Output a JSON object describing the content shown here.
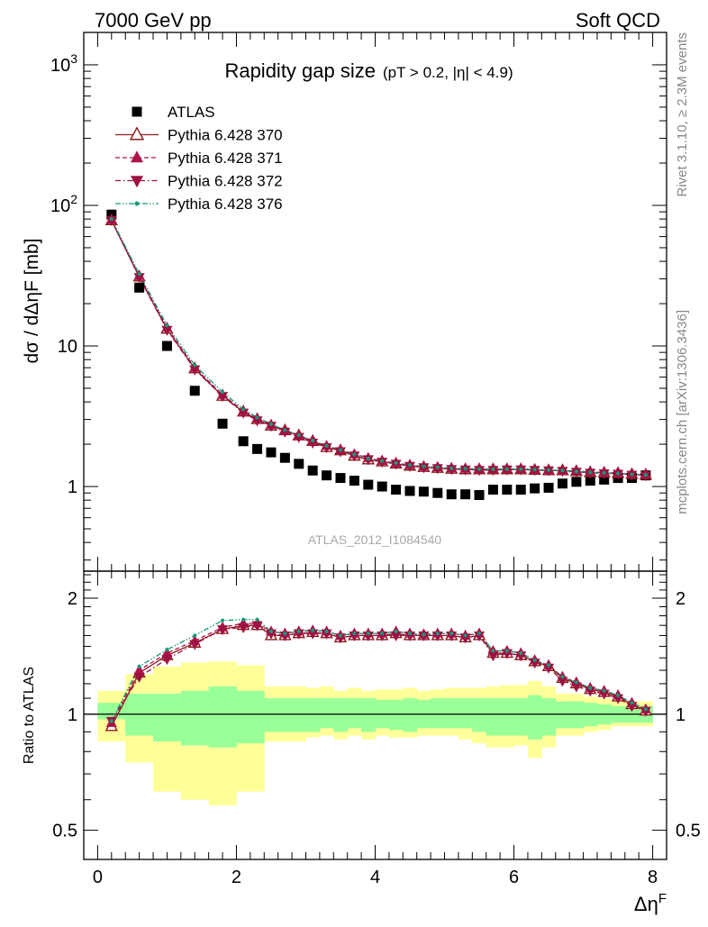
{
  "header": {
    "energy_label": "7000 GeV pp",
    "process_label": "Soft QCD"
  },
  "side": {
    "rivet_label": "Rivet 3.1.10, ≥ 2.3M events",
    "mcplots_label": "mcplots.cern.ch [arXiv:1306.3436]"
  },
  "colors": {
    "data": "#000000",
    "p370": "#8b1a1a",
    "p371": "#b0124a",
    "p372": "#9e1242",
    "p376": "#109a78",
    "band_stat": "#99ff99",
    "band_total": "#ffff99"
  },
  "chart_data": [
    {
      "type": "scatter",
      "title": "Rapidity gap size",
      "subtitle": "(pT > 0.2, |η| < 4.9)",
      "ylabel": "dσ / dΔηF [mb]",
      "xlabel": "ΔηF",
      "yscale": "log",
      "ylim": [
        0.25,
        1700
      ],
      "xlim": [
        -0.2,
        8.2
      ],
      "grid": false,
      "legend_position": "top-left",
      "annotation": "ATLAS_2012_I1084540",
      "x_ticks": [
        "0",
        "2",
        "4",
        "6",
        "8"
      ],
      "y_ticks": [
        "1",
        "10",
        "10²",
        "10³"
      ],
      "x": [
        0.2,
        0.6,
        1.0,
        1.4,
        1.8,
        2.1,
        2.3,
        2.5,
        2.7,
        2.9,
        3.1,
        3.3,
        3.5,
        3.7,
        3.9,
        4.1,
        4.3,
        4.5,
        4.7,
        4.9,
        5.1,
        5.3,
        5.5,
        5.7,
        5.9,
        6.1,
        6.3,
        6.5,
        6.7,
        6.9,
        7.1,
        7.3,
        7.5,
        7.7,
        7.9
      ],
      "series": [
        {
          "name": "ATLAS",
          "marker": "square",
          "line": "none",
          "values": [
            86,
            26,
            10,
            4.8,
            2.8,
            2.1,
            1.85,
            1.75,
            1.6,
            1.45,
            1.3,
            1.2,
            1.15,
            1.1,
            1.03,
            1.0,
            0.95,
            0.93,
            0.92,
            0.9,
            0.88,
            0.88,
            0.87,
            0.95,
            0.95,
            0.95,
            0.97,
            0.98,
            1.05,
            1.08,
            1.1,
            1.12,
            1.15,
            1.15,
            1.2
          ]
        },
        {
          "name": "Pythia 6.428 370",
          "marker": "triangle-open",
          "line": "solid",
          "values": [
            78,
            31,
            13.2,
            6.9,
            4.4,
            3.4,
            3.0,
            2.7,
            2.5,
            2.3,
            2.1,
            1.9,
            1.8,
            1.65,
            1.55,
            1.5,
            1.45,
            1.4,
            1.37,
            1.35,
            1.33,
            1.32,
            1.32,
            1.32,
            1.32,
            1.32,
            1.31,
            1.3,
            1.3,
            1.28,
            1.26,
            1.25,
            1.24,
            1.22,
            1.21
          ]
        },
        {
          "name": "Pythia 6.428 371",
          "marker": "triangle-up",
          "line": "dashed",
          "values": [
            79,
            31.5,
            13.5,
            7.0,
            4.5,
            3.45,
            3.05,
            2.75,
            2.5,
            2.3,
            2.1,
            1.95,
            1.82,
            1.7,
            1.6,
            1.52,
            1.47,
            1.42,
            1.39,
            1.37,
            1.35,
            1.34,
            1.33,
            1.33,
            1.33,
            1.33,
            1.32,
            1.31,
            1.3,
            1.29,
            1.27,
            1.26,
            1.25,
            1.23,
            1.22
          ]
        },
        {
          "name": "Pythia 6.428 372",
          "marker": "triangle-down",
          "line": "dashdot",
          "values": [
            78.5,
            30.8,
            13.0,
            6.8,
            4.4,
            3.35,
            2.95,
            2.7,
            2.45,
            2.25,
            2.05,
            1.9,
            1.78,
            1.66,
            1.56,
            1.5,
            1.45,
            1.4,
            1.37,
            1.35,
            1.33,
            1.32,
            1.31,
            1.31,
            1.32,
            1.32,
            1.31,
            1.3,
            1.29,
            1.27,
            1.25,
            1.24,
            1.23,
            1.21,
            1.2
          ]
        },
        {
          "name": "Pythia 6.428 376",
          "marker": "dot",
          "line": "dashdotdot",
          "values": [
            80,
            32.5,
            14.0,
            7.3,
            4.7,
            3.55,
            3.1,
            2.78,
            2.52,
            2.32,
            2.12,
            1.95,
            1.82,
            1.69,
            1.58,
            1.52,
            1.47,
            1.42,
            1.39,
            1.37,
            1.35,
            1.34,
            1.33,
            1.33,
            1.33,
            1.33,
            1.32,
            1.31,
            1.3,
            1.28,
            1.26,
            1.25,
            1.24,
            1.22,
            1.21
          ]
        }
      ]
    },
    {
      "type": "scatter",
      "ylabel": "Ratio to ATLAS",
      "xlabel": "ΔηF",
      "yscale": "log",
      "ylim": [
        0.42,
        2.35
      ],
      "xlim": [
        -0.2,
        8.2
      ],
      "grid": false,
      "reference_line": 1,
      "x_ticks": [
        "0",
        "2",
        "4",
        "6",
        "8"
      ],
      "y_ticks": [
        "0.5",
        "1",
        "2"
      ],
      "band_x_edges": [
        0.0,
        0.4,
        0.8,
        1.2,
        1.6,
        2.0,
        2.4,
        2.6,
        2.8,
        3.0,
        3.2,
        3.4,
        3.6,
        3.8,
        4.0,
        4.2,
        4.4,
        4.6,
        4.8,
        5.0,
        5.2,
        5.4,
        5.6,
        5.8,
        6.0,
        6.2,
        6.4,
        6.6,
        6.8,
        7.0,
        7.2,
        7.4,
        7.6,
        7.8,
        8.0
      ],
      "stat_band": {
        "lo": [
          0.97,
          0.88,
          0.85,
          0.83,
          0.82,
          0.84,
          0.9,
          0.9,
          0.9,
          0.9,
          0.92,
          0.9,
          0.92,
          0.9,
          0.92,
          0.91,
          0.9,
          0.92,
          0.92,
          0.92,
          0.92,
          0.9,
          0.88,
          0.88,
          0.88,
          0.86,
          0.88,
          0.92,
          0.92,
          0.93,
          0.94,
          0.95,
          0.95,
          0.95
        ],
        "hi": [
          1.07,
          1.13,
          1.13,
          1.15,
          1.18,
          1.15,
          1.1,
          1.1,
          1.1,
          1.1,
          1.1,
          1.1,
          1.1,
          1.1,
          1.09,
          1.09,
          1.1,
          1.09,
          1.1,
          1.1,
          1.1,
          1.1,
          1.1,
          1.1,
          1.1,
          1.12,
          1.1,
          1.08,
          1.08,
          1.07,
          1.06,
          1.05,
          1.05,
          1.05
        ]
      },
      "total_band": {
        "lo": [
          0.85,
          0.75,
          0.63,
          0.6,
          0.58,
          0.63,
          0.85,
          0.85,
          0.85,
          0.87,
          0.88,
          0.86,
          0.88,
          0.86,
          0.88,
          0.87,
          0.87,
          0.88,
          0.88,
          0.88,
          0.86,
          0.84,
          0.82,
          0.82,
          0.83,
          0.77,
          0.82,
          0.88,
          0.88,
          0.9,
          0.91,
          0.93,
          0.93,
          0.93
        ],
        "hi": [
          1.15,
          1.27,
          1.33,
          1.36,
          1.37,
          1.34,
          1.18,
          1.18,
          1.18,
          1.17,
          1.18,
          1.15,
          1.17,
          1.15,
          1.16,
          1.16,
          1.17,
          1.15,
          1.16,
          1.17,
          1.17,
          1.17,
          1.18,
          1.19,
          1.19,
          1.22,
          1.18,
          1.13,
          1.13,
          1.11,
          1.1,
          1.08,
          1.08,
          1.08
        ]
      },
      "x": [
        0.2,
        0.6,
        1.0,
        1.4,
        1.8,
        2.1,
        2.3,
        2.5,
        2.7,
        2.9,
        3.1,
        3.3,
        3.5,
        3.7,
        3.9,
        4.1,
        4.3,
        4.5,
        4.7,
        4.9,
        5.1,
        5.3,
        5.5,
        5.7,
        5.9,
        6.1,
        6.3,
        6.5,
        6.7,
        6.9,
        7.1,
        7.3,
        7.5,
        7.7,
        7.9
      ],
      "series": [
        {
          "name": "Pythia 6.428 370",
          "marker": "triangle-open",
          "line": "solid",
          "values": [
            0.93,
            1.28,
            1.42,
            1.53,
            1.66,
            1.7,
            1.7,
            1.6,
            1.6,
            1.62,
            1.63,
            1.62,
            1.58,
            1.6,
            1.6,
            1.6,
            1.62,
            1.6,
            1.6,
            1.6,
            1.6,
            1.58,
            1.6,
            1.44,
            1.44,
            1.42,
            1.37,
            1.33,
            1.24,
            1.2,
            1.16,
            1.14,
            1.11,
            1.06,
            1.02
          ]
        },
        {
          "name": "Pythia 6.428 371",
          "marker": "triangle-up",
          "line": "dashed",
          "values": [
            0.95,
            1.3,
            1.44,
            1.55,
            1.68,
            1.72,
            1.72,
            1.64,
            1.62,
            1.64,
            1.65,
            1.64,
            1.6,
            1.62,
            1.62,
            1.62,
            1.64,
            1.62,
            1.61,
            1.62,
            1.62,
            1.6,
            1.62,
            1.46,
            1.46,
            1.44,
            1.38,
            1.34,
            1.25,
            1.21,
            1.17,
            1.15,
            1.12,
            1.07,
            1.03
          ]
        },
        {
          "name": "Pythia 6.428 372",
          "marker": "triangle-down",
          "line": "dashdot",
          "values": [
            0.96,
            1.25,
            1.39,
            1.52,
            1.66,
            1.68,
            1.7,
            1.62,
            1.6,
            1.62,
            1.62,
            1.62,
            1.58,
            1.6,
            1.6,
            1.6,
            1.6,
            1.6,
            1.6,
            1.6,
            1.6,
            1.58,
            1.6,
            1.42,
            1.44,
            1.42,
            1.36,
            1.32,
            1.22,
            1.18,
            1.15,
            1.13,
            1.1,
            1.05,
            1.02
          ]
        },
        {
          "name": "Pythia 6.428 376",
          "marker": "dot",
          "line": "dashdotdot",
          "values": [
            0.96,
            1.33,
            1.47,
            1.6,
            1.75,
            1.76,
            1.76,
            1.64,
            1.62,
            1.64,
            1.65,
            1.64,
            1.6,
            1.62,
            1.62,
            1.62,
            1.64,
            1.62,
            1.61,
            1.62,
            1.62,
            1.6,
            1.62,
            1.46,
            1.46,
            1.44,
            1.38,
            1.34,
            1.25,
            1.21,
            1.17,
            1.15,
            1.12,
            1.07,
            1.03
          ]
        }
      ]
    }
  ]
}
